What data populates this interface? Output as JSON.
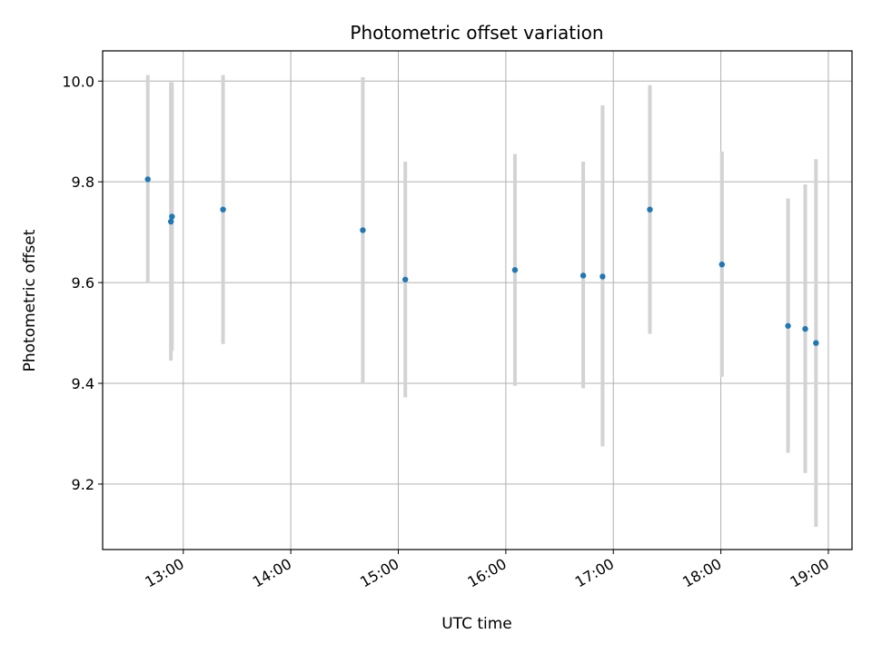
{
  "chart_data": {
    "type": "scatter",
    "title": "Photometric offset variation",
    "xlabel": "UTC time",
    "ylabel": "Photometric offset",
    "x_tick_labels": [
      "13:00",
      "14:00",
      "15:00",
      "16:00",
      "17:00",
      "18:00",
      "19:00"
    ],
    "x_tick_values": [
      13,
      14,
      15,
      16,
      17,
      18,
      19
    ],
    "y_tick_values": [
      9.2,
      9.4,
      9.6,
      9.8,
      10.0
    ],
    "y_tick_labels": [
      "9.2",
      "9.4",
      "9.6",
      "9.8",
      "10.0"
    ],
    "xlim": [
      12.25,
      19.22
    ],
    "ylim": [
      9.07,
      10.06
    ],
    "grid": true,
    "point_color": "#1f77b4",
    "errorbar_color": "#d3d3d3",
    "points": [
      {
        "time": "12:40",
        "x": 12.67,
        "y": 9.805,
        "y_low": 9.6,
        "y_high": 10.012
      },
      {
        "time": "12:53",
        "x": 12.885,
        "y": 9.721,
        "y_low": 9.445,
        "y_high": 9.998
      },
      {
        "time": "12:54",
        "x": 12.895,
        "y": 9.731,
        "y_low": 9.465,
        "y_high": 9.997
      },
      {
        "time": "13:22",
        "x": 13.37,
        "y": 9.745,
        "y_low": 9.478,
        "y_high": 10.012
      },
      {
        "time": "14:40",
        "x": 14.67,
        "y": 9.704,
        "y_low": 9.4,
        "y_high": 10.008
      },
      {
        "time": "15:04",
        "x": 15.065,
        "y": 9.606,
        "y_low": 9.372,
        "y_high": 9.84
      },
      {
        "time": "16:05",
        "x": 16.085,
        "y": 9.625,
        "y_low": 9.395,
        "y_high": 9.855
      },
      {
        "time": "16:43",
        "x": 16.72,
        "y": 9.614,
        "y_low": 9.39,
        "y_high": 9.84
      },
      {
        "time": "16:54",
        "x": 16.9,
        "y": 9.612,
        "y_low": 9.275,
        "y_high": 9.952
      },
      {
        "time": "17:21",
        "x": 17.34,
        "y": 9.745,
        "y_low": 9.498,
        "y_high": 9.992
      },
      {
        "time": "18:00",
        "x": 18.01,
        "y": 9.636,
        "y_low": 9.413,
        "y_high": 9.86
      },
      {
        "time": "18:37",
        "x": 18.625,
        "y": 9.514,
        "y_low": 9.262,
        "y_high": 9.767
      },
      {
        "time": "18:47",
        "x": 18.785,
        "y": 9.508,
        "y_low": 9.222,
        "y_high": 9.795
      },
      {
        "time": "18:53",
        "x": 18.885,
        "y": 9.48,
        "y_low": 9.115,
        "y_high": 9.845
      }
    ]
  }
}
